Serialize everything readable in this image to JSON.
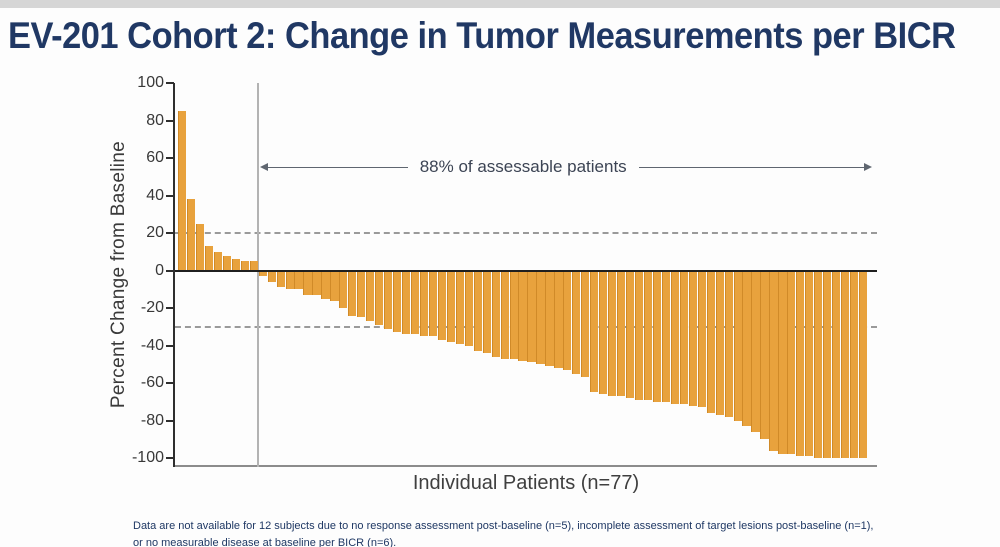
{
  "title": "EV-201 Cohort 2: Change in Tumor Measurements per BICR",
  "chart_data": {
    "type": "bar",
    "subtype": "waterfall",
    "title": "EV-201 Cohort 2: Change in Tumor Measurements per BICR",
    "xlabel": "Individual Patients (n=77)",
    "ylabel": "Percent Change from Baseline",
    "ylim": [
      -100,
      100
    ],
    "yticks": [
      100,
      80,
      60,
      40,
      20,
      0,
      -20,
      -40,
      -60,
      -80,
      -100
    ],
    "grid": false,
    "reference_lines": [
      20,
      -30
    ],
    "separator_after_bar": 9,
    "annotation": "88% of assessable patients",
    "bar_color": "#E8A23D",
    "values": [
      85,
      38,
      25,
      13,
      10,
      8,
      6,
      5,
      5,
      -3,
      -6,
      -9,
      -10,
      -10,
      -13,
      -13,
      -15,
      -16,
      -20,
      -24,
      -25,
      -27,
      -29,
      -31,
      -33,
      -34,
      -34,
      -35,
      -35,
      -37,
      -38,
      -39,
      -40,
      -43,
      -44,
      -46,
      -47,
      -47,
      -48,
      -49,
      -50,
      -51,
      -52,
      -53,
      -55,
      -57,
      -65,
      -66,
      -67,
      -67,
      -68,
      -69,
      -69,
      -70,
      -70,
      -71,
      -71,
      -72,
      -73,
      -76,
      -77,
      -78,
      -80,
      -83,
      -86,
      -90,
      -96,
      -98,
      -98,
      -99,
      -99,
      -100,
      -100,
      -100,
      -100,
      -100,
      -100
    ]
  },
  "footnote": {
    "line1": "Data are not available for 12 subjects due to no response assessment post-baseline (n=5), incomplete assessment of target lesions post-baseline (n=1),",
    "line2": "or no measurable disease at baseline per BICR (n=6)."
  },
  "colors": {
    "title_navy": "#203864",
    "bar_orange": "#E8A23D",
    "axis_dark": "#2e2e2e",
    "footnote_navy": "#1f3864"
  }
}
